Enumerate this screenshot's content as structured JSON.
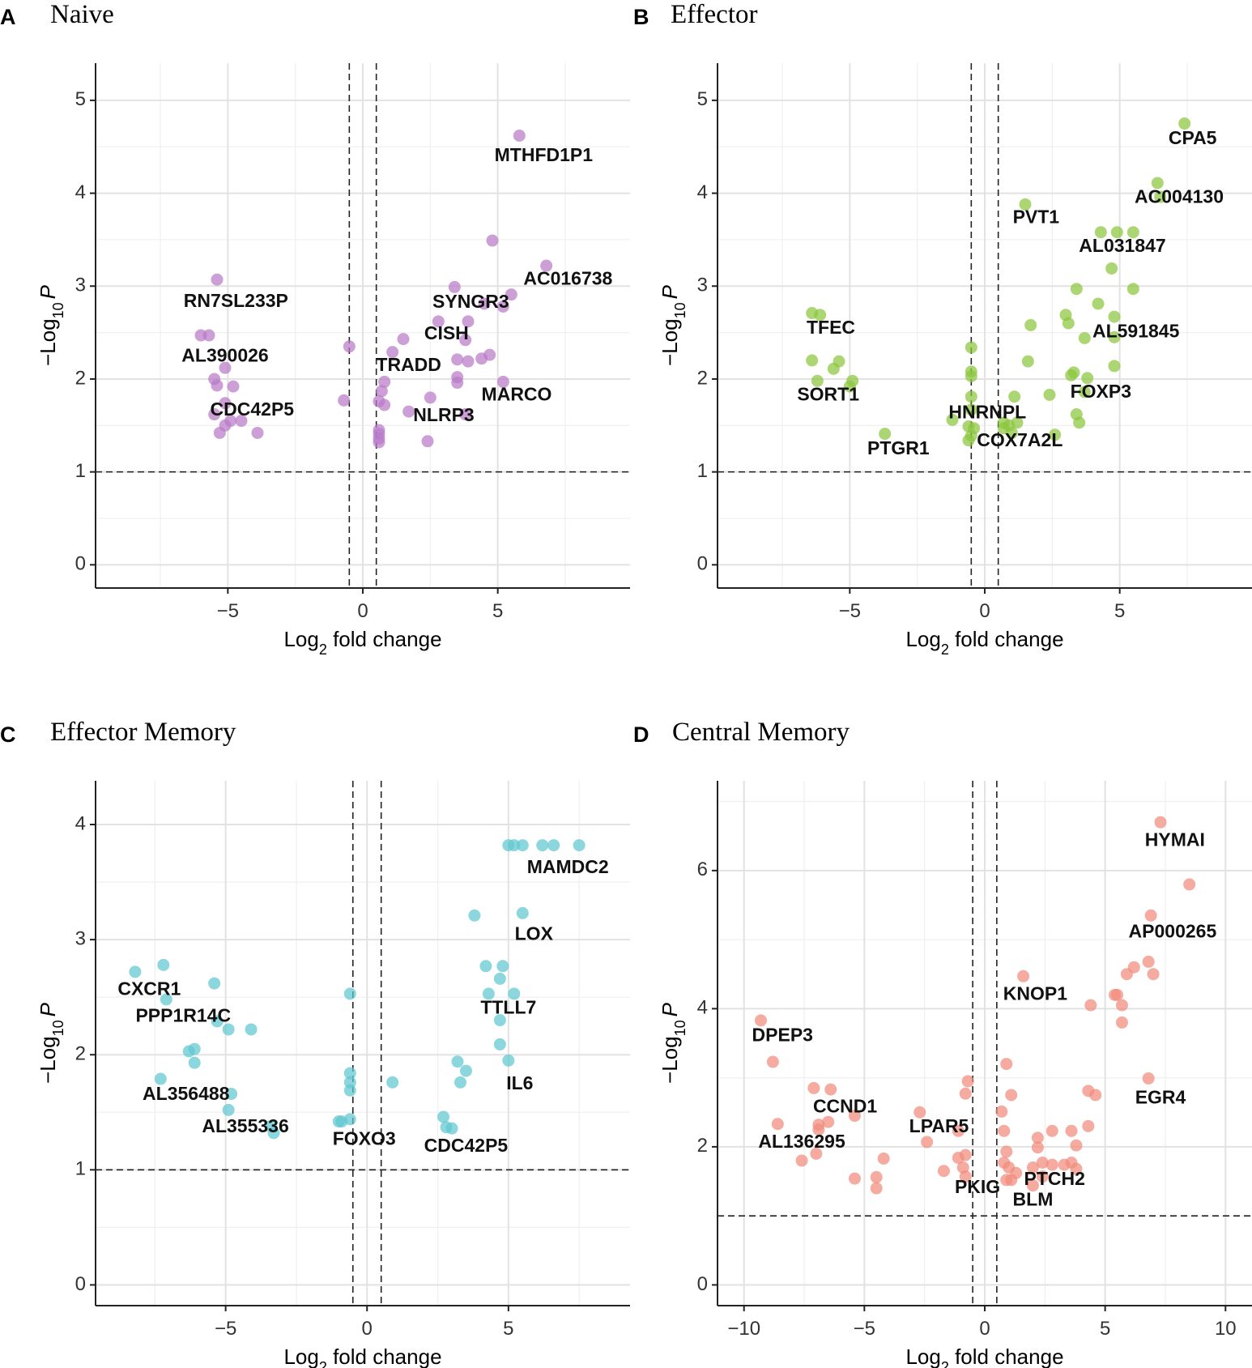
{
  "chart_data": [
    {
      "type": "scatter",
      "letter": "A",
      "title": "Naive",
      "xlabel": "Log",
      "xlabel_sub": "2",
      "xlabel_rest": " fold change",
      "ylabel": "−Log",
      "ylabel_sub": "10",
      "ylabel_p": "P",
      "xlim": [
        -9.9,
        9.9
      ],
      "ylim": [
        -0.25,
        5.4
      ],
      "xticks": [
        -5,
        0,
        5
      ],
      "xtick_labels": [
        "−5",
        "0",
        "5"
      ],
      "yticks": [
        0,
        1,
        2,
        3,
        4,
        5
      ],
      "ytick_labels": [
        "0",
        "1",
        "2",
        "3",
        "4",
        "5"
      ],
      "minor_x": [
        -7.5,
        -2.5,
        2.5,
        7.5
      ],
      "minor_y": [
        0.5,
        1.5,
        2.5,
        3.5,
        4.5
      ],
      "fc_cutoff": 0.5,
      "p_cutoff": 1,
      "color": "#b87ac8",
      "points": [
        [
          5.8,
          4.62
        ],
        [
          4.8,
          3.49
        ],
        [
          6.8,
          3.22
        ],
        [
          5.5,
          2.91
        ],
        [
          5.2,
          2.78
        ],
        [
          3.4,
          2.99
        ],
        [
          2.8,
          2.62
        ],
        [
          3.9,
          2.62
        ],
        [
          3.8,
          2.42
        ],
        [
          4.5,
          2.81
        ],
        [
          1.5,
          2.43
        ],
        [
          1.1,
          2.29
        ],
        [
          3.5,
          2.21
        ],
        [
          3.9,
          2.19
        ],
        [
          4.4,
          2.22
        ],
        [
          4.7,
          2.26
        ],
        [
          3.5,
          2.02
        ],
        [
          3.5,
          1.96
        ],
        [
          5.2,
          1.97
        ],
        [
          2.5,
          1.8
        ],
        [
          3.8,
          1.62
        ],
        [
          0.8,
          1.97
        ],
        [
          0.7,
          1.87
        ],
        [
          0.6,
          1.76
        ],
        [
          0.8,
          1.72
        ],
        [
          1.7,
          1.65
        ],
        [
          0.6,
          1.45
        ],
        [
          0.6,
          1.41
        ],
        [
          0.6,
          1.32
        ],
        [
          0.6,
          1.36
        ],
        [
          2.4,
          1.33
        ],
        [
          -0.5,
          2.35
        ],
        [
          -0.7,
          1.77
        ],
        [
          -5.4,
          3.07
        ],
        [
          -6,
          2.47
        ],
        [
          -5.7,
          2.47
        ],
        [
          -5.1,
          2.12
        ],
        [
          -5.5,
          2.0
        ],
        [
          -5.4,
          1.93
        ],
        [
          -4.8,
          1.92
        ],
        [
          -5.1,
          1.74
        ],
        [
          -5.5,
          1.62
        ],
        [
          -4.5,
          1.55
        ],
        [
          -4.9,
          1.55
        ],
        [
          -5.1,
          1.5
        ],
        [
          -5.3,
          1.42
        ],
        [
          -3.9,
          1.42
        ]
      ],
      "labels": [
        {
          "text": "MTHFD1P1",
          "x": 6.7,
          "y": 4.4
        },
        {
          "text": "AC016738",
          "x": 7.6,
          "y": 3.07
        },
        {
          "text": "SYNGR3",
          "x": 4.0,
          "y": 2.82
        },
        {
          "text": "CISH",
          "x": 3.1,
          "y": 2.48
        },
        {
          "text": "TRADD",
          "x": 1.7,
          "y": 2.14
        },
        {
          "text": "MARCO",
          "x": 5.7,
          "y": 1.82
        },
        {
          "text": "NLRP3",
          "x": 3.0,
          "y": 1.6
        },
        {
          "text": "RN7SL233P",
          "x": -4.7,
          "y": 2.83
        },
        {
          "text": "AL390026",
          "x": -5.1,
          "y": 2.24
        },
        {
          "text": "CDC42P5",
          "x": -4.1,
          "y": 1.66
        }
      ]
    },
    {
      "type": "scatter",
      "letter": "B",
      "title": "Effector",
      "xlabel": "Log",
      "xlabel_sub": "2",
      "xlabel_rest": " fold change",
      "ylabel": "−Log",
      "ylabel_sub": "10",
      "ylabel_p": "P",
      "xlim": [
        -9.9,
        9.9
      ],
      "ylim": [
        -0.25,
        5.4
      ],
      "xticks": [
        -5,
        0,
        5
      ],
      "xtick_labels": [
        "−5",
        "0",
        "5"
      ],
      "yticks": [
        0,
        1,
        2,
        3,
        4,
        5
      ],
      "ytick_labels": [
        "0",
        "1",
        "2",
        "3",
        "4",
        "5"
      ],
      "minor_x": [
        -7.5,
        -2.5,
        2.5,
        7.5
      ],
      "minor_y": [
        0.5,
        1.5,
        2.5,
        3.5,
        4.5
      ],
      "fc_cutoff": 0.5,
      "p_cutoff": 1,
      "color": "#8cc63f",
      "points": [
        [
          7.4,
          4.75
        ],
        [
          6.4,
          4.11
        ],
        [
          6.5,
          3.96
        ],
        [
          1.5,
          3.88
        ],
        [
          4.3,
          3.58
        ],
        [
          4.9,
          3.58
        ],
        [
          5.5,
          3.58
        ],
        [
          4.7,
          3.19
        ],
        [
          3.4,
          2.97
        ],
        [
          5.5,
          2.97
        ],
        [
          4.2,
          2.81
        ],
        [
          3.0,
          2.69
        ],
        [
          4.8,
          2.67
        ],
        [
          3.1,
          2.6
        ],
        [
          1.7,
          2.58
        ],
        [
          4.8,
          2.45
        ],
        [
          3.7,
          2.44
        ],
        [
          1.6,
          2.19
        ],
        [
          4.8,
          2.14
        ],
        [
          3.3,
          2.07
        ],
        [
          3.2,
          2.04
        ],
        [
          3.8,
          2.01
        ],
        [
          3.7,
          1.86
        ],
        [
          2.4,
          1.83
        ],
        [
          1.1,
          1.81
        ],
        [
          3.4,
          1.62
        ],
        [
          3.5,
          1.53
        ],
        [
          2.6,
          1.4
        ],
        [
          1.2,
          1.53
        ],
        [
          0.9,
          1.5
        ],
        [
          0.7,
          1.53
        ],
        [
          0.7,
          1.47
        ],
        [
          1.0,
          1.42
        ],
        [
          -0.5,
          2.34
        ],
        [
          -0.5,
          2.08
        ],
        [
          -0.5,
          2.03
        ],
        [
          -0.5,
          1.81
        ],
        [
          -0.5,
          1.67
        ],
        [
          -1.2,
          1.56
        ],
        [
          -0.6,
          1.49
        ],
        [
          -0.4,
          1.47
        ],
        [
          -0.5,
          1.39
        ],
        [
          -0.6,
          1.34
        ],
        [
          -6.4,
          2.71
        ],
        [
          -6.1,
          2.69
        ],
        [
          -6.4,
          2.2
        ],
        [
          -5.4,
          2.19
        ],
        [
          -5.6,
          2.11
        ],
        [
          -6.2,
          1.98
        ],
        [
          -4.9,
          1.98
        ],
        [
          -5.0,
          1.92
        ],
        [
          -3.7,
          1.41
        ]
      ],
      "labels": [
        {
          "text": "CPA5",
          "x": 7.7,
          "y": 4.58
        },
        {
          "text": "AC004130",
          "x": 7.2,
          "y": 3.95
        },
        {
          "text": "PVT1",
          "x": 1.9,
          "y": 3.73
        },
        {
          "text": "AL031847",
          "x": 5.1,
          "y": 3.42
        },
        {
          "text": "AL591845",
          "x": 5.6,
          "y": 2.5
        },
        {
          "text": "FOXP3",
          "x": 4.3,
          "y": 1.85
        },
        {
          "text": "TFEC",
          "x": -5.7,
          "y": 2.54
        },
        {
          "text": "SORT1",
          "x": -5.8,
          "y": 1.82
        },
        {
          "text": "HNRNPL",
          "x": 0.1,
          "y": 1.63
        },
        {
          "text": "COX7A2L",
          "x": 1.3,
          "y": 1.33
        },
        {
          "text": "PTGR1",
          "x": -3.2,
          "y": 1.24
        }
      ]
    },
    {
      "type": "scatter",
      "letter": "C",
      "title": "Effector Memory",
      "xlabel": "Log",
      "xlabel_sub": "2",
      "xlabel_rest": " fold change",
      "ylabel": "−Log",
      "ylabel_sub": "10",
      "ylabel_p": "P",
      "xlim": [
        -9.6,
        9.3
      ],
      "ylim": [
        -0.18,
        4.38
      ],
      "xticks": [
        -5,
        0,
        5
      ],
      "xtick_labels": [
        "−5",
        "0",
        "5"
      ],
      "yticks": [
        0,
        1,
        2,
        3,
        4
      ],
      "ytick_labels": [
        "0",
        "1",
        "2",
        "3",
        "4"
      ],
      "minor_x": [
        -7.5,
        -2.5,
        2.5,
        7.5
      ],
      "minor_y": [
        0.5,
        1.5,
        2.5,
        3.5
      ],
      "fc_cutoff": 0.5,
      "p_cutoff": 1,
      "color": "#5ec8d0",
      "points": [
        [
          5.0,
          3.82
        ],
        [
          5.2,
          3.82
        ],
        [
          5.5,
          3.82
        ],
        [
          6.2,
          3.82
        ],
        [
          6.6,
          3.82
        ],
        [
          7.5,
          3.82
        ],
        [
          5.5,
          3.23
        ],
        [
          3.8,
          3.21
        ],
        [
          4.2,
          2.77
        ],
        [
          4.8,
          2.77
        ],
        [
          4.7,
          2.66
        ],
        [
          4.3,
          2.53
        ],
        [
          5.2,
          2.53
        ],
        [
          4.7,
          2.3
        ],
        [
          4.7,
          2.09
        ],
        [
          3.2,
          1.94
        ],
        [
          5.0,
          1.95
        ],
        [
          3.5,
          1.86
        ],
        [
          3.3,
          1.76
        ],
        [
          2.7,
          1.46
        ],
        [
          2.8,
          1.37
        ],
        [
          3.0,
          1.36
        ],
        [
          0.9,
          1.76
        ],
        [
          -0.6,
          2.53
        ],
        [
          -0.6,
          1.84
        ],
        [
          -0.6,
          1.76
        ],
        [
          -0.6,
          1.69
        ],
        [
          -0.6,
          1.44
        ],
        [
          -0.9,
          1.42
        ],
        [
          -1.0,
          1.42
        ],
        [
          -8.2,
          2.72
        ],
        [
          -7.2,
          2.78
        ],
        [
          -7.1,
          2.48
        ],
        [
          -5.4,
          2.62
        ],
        [
          -5.3,
          2.29
        ],
        [
          -4.9,
          2.22
        ],
        [
          -4.1,
          2.22
        ],
        [
          -6.3,
          2.03
        ],
        [
          -6.1,
          2.05
        ],
        [
          -6.1,
          1.93
        ],
        [
          -7.3,
          1.79
        ],
        [
          -4.8,
          1.66
        ],
        [
          -4.9,
          1.52
        ],
        [
          -3.4,
          1.38
        ],
        [
          -3.3,
          1.32
        ]
      ],
      "labels": [
        {
          "text": "MAMDC2",
          "x": 7.1,
          "y": 3.62
        },
        {
          "text": "LOX",
          "x": 5.9,
          "y": 3.04
        },
        {
          "text": "TTLL7",
          "x": 5.0,
          "y": 2.4
        },
        {
          "text": "IL6",
          "x": 5.4,
          "y": 1.74
        },
        {
          "text": "CDC42P5",
          "x": 3.5,
          "y": 1.2
        },
        {
          "text": "FOXO3",
          "x": -0.1,
          "y": 1.26
        },
        {
          "text": "CXCR1",
          "x": -7.7,
          "y": 2.56
        },
        {
          "text": "PPP1R14C",
          "x": -6.5,
          "y": 2.33
        },
        {
          "text": "AL356488",
          "x": -6.4,
          "y": 1.65
        },
        {
          "text": "AL355336",
          "x": -4.3,
          "y": 1.37
        }
      ]
    },
    {
      "type": "scatter",
      "letter": "D",
      "title": "Central Memory",
      "xlabel": "Log",
      "xlabel_sub": "2",
      "xlabel_rest": " fold change",
      "ylabel": "−Log",
      "ylabel_sub": "10",
      "ylabel_p": "P",
      "xlim": [
        -11.1,
        11.1
      ],
      "ylim": [
        -0.3,
        7.3
      ],
      "xticks": [
        -10,
        -5,
        0,
        5,
        10
      ],
      "xtick_labels": [
        "−10",
        "−5",
        "0",
        "5",
        "10"
      ],
      "yticks": [
        0,
        2,
        4,
        6
      ],
      "ytick_labels": [
        "0",
        "2",
        "4",
        "6"
      ],
      "minor_x": [
        -7.5,
        -2.5,
        2.5,
        7.5
      ],
      "minor_y": [
        1,
        3,
        5,
        7
      ],
      "fc_cutoff": 0.5,
      "p_cutoff": 1,
      "color": "#f18b7c",
      "points": [
        [
          7.3,
          6.7
        ],
        [
          8.5,
          5.8
        ],
        [
          6.9,
          5.35
        ],
        [
          6.8,
          4.68
        ],
        [
          6.2,
          4.6
        ],
        [
          7.0,
          4.5
        ],
        [
          5.9,
          4.5
        ],
        [
          5.4,
          4.2
        ],
        [
          5.5,
          4.2
        ],
        [
          5.7,
          4.05
        ],
        [
          5.7,
          3.8
        ],
        [
          4.4,
          4.05
        ],
        [
          1.6,
          4.47
        ],
        [
          6.8,
          2.99
        ],
        [
          4.3,
          2.81
        ],
        [
          4.6,
          2.75
        ],
        [
          0.9,
          3.2
        ],
        [
          1.1,
          2.75
        ],
        [
          0.7,
          2.51
        ],
        [
          0.8,
          2.23
        ],
        [
          2.2,
          2.13
        ],
        [
          2.8,
          2.23
        ],
        [
          3.6,
          2.23
        ],
        [
          3.8,
          2.02
        ],
        [
          4.3,
          2.3
        ],
        [
          2.2,
          1.99
        ],
        [
          0.9,
          1.93
        ],
        [
          0.8,
          1.77
        ],
        [
          1.0,
          1.7
        ],
        [
          1.3,
          1.62
        ],
        [
          2.0,
          1.7
        ],
        [
          2.4,
          1.77
        ],
        [
          2.8,
          1.74
        ],
        [
          3.3,
          1.74
        ],
        [
          3.6,
          1.77
        ],
        [
          3.8,
          1.68
        ],
        [
          2.4,
          1.57
        ],
        [
          1.1,
          1.52
        ],
        [
          2.0,
          1.44
        ],
        [
          0.9,
          1.52
        ],
        [
          -0.7,
          2.95
        ],
        [
          -0.8,
          2.77
        ],
        [
          -1.1,
          2.23
        ],
        [
          -0.8,
          1.88
        ],
        [
          -1.1,
          1.84
        ],
        [
          -0.9,
          1.7
        ],
        [
          -0.8,
          1.57
        ],
        [
          -1.7,
          1.65
        ],
        [
          -2.4,
          2.07
        ],
        [
          -2.7,
          2.5
        ],
        [
          -9.3,
          3.83
        ],
        [
          -8.8,
          3.23
        ],
        [
          -8.6,
          2.33
        ],
        [
          -7.1,
          2.85
        ],
        [
          -6.4,
          2.83
        ],
        [
          -6.9,
          2.32
        ],
        [
          -6.5,
          2.36
        ],
        [
          -6.9,
          2.25
        ],
        [
          -5.4,
          2.45
        ],
        [
          -7.0,
          1.9
        ],
        [
          -7.6,
          1.8
        ],
        [
          -4.2,
          1.83
        ],
        [
          -5.4,
          1.54
        ],
        [
          -4.5,
          1.56
        ],
        [
          -4.5,
          1.4
        ]
      ],
      "labels": [
        {
          "text": "HYMAI",
          "x": 7.9,
          "y": 6.43
        },
        {
          "text": "AP000265",
          "x": 7.8,
          "y": 5.1
        },
        {
          "text": "KNOP1",
          "x": 2.1,
          "y": 4.2
        },
        {
          "text": "EGR4",
          "x": 7.3,
          "y": 2.7
        },
        {
          "text": "PTCH2",
          "x": 2.9,
          "y": 1.52
        },
        {
          "text": "BLM",
          "x": 2.0,
          "y": 1.22
        },
        {
          "text": "PKIG",
          "x": -0.3,
          "y": 1.4
        },
        {
          "text": "DPEP3",
          "x": -8.4,
          "y": 3.6
        },
        {
          "text": "CCND1",
          "x": -5.8,
          "y": 2.57
        },
        {
          "text": "LPAR5",
          "x": -1.9,
          "y": 2.28
        },
        {
          "text": "AL136295",
          "x": -7.6,
          "y": 2.06
        }
      ]
    }
  ]
}
